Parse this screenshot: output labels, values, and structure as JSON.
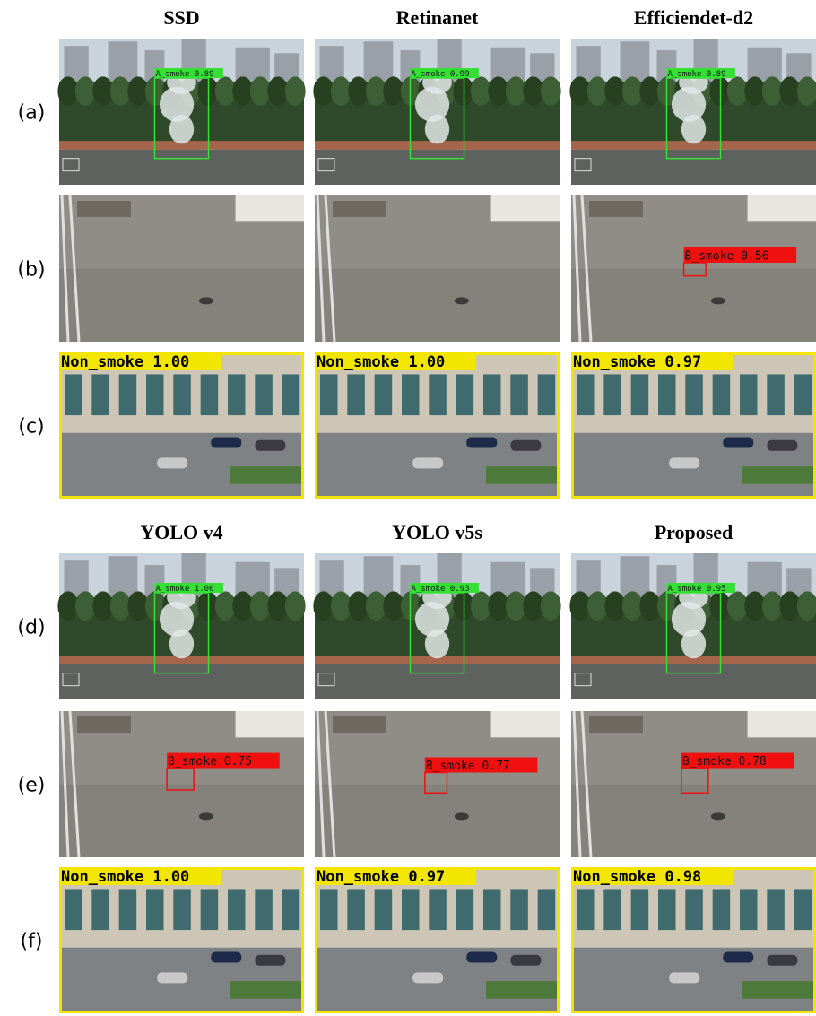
{
  "groups": [
    {
      "titles": [
        "SSD",
        "Retinanet",
        "Efficiendet-d2"
      ],
      "rows": [
        {
          "label": "(a)",
          "detections": [
            [
              "A_smoke 0.89"
            ],
            [
              "A_smoke 0.99"
            ],
            [
              "A_smoke 0.89"
            ]
          ]
        },
        {
          "label": "(b)",
          "detections": [
            [],
            [],
            [
              "B_smoke 0.56"
            ]
          ]
        },
        {
          "label": "(c)",
          "detections": [
            [
              "Non_smoke 1.00"
            ],
            [
              "Non_smoke 1.00"
            ],
            [
              "Non_smoke 0.97"
            ]
          ]
        }
      ]
    },
    {
      "titles": [
        "YOLO v4",
        "YOLO v5s",
        "Proposed"
      ],
      "rows": [
        {
          "label": "(d)",
          "detections": [
            [
              "A_smoke 1.00"
            ],
            [
              "A_smoke 0.93"
            ],
            [
              "A_smoke 0.95"
            ]
          ]
        },
        {
          "label": "(e)",
          "detections": [
            [
              "B_smoke 0.75"
            ],
            [
              "B_smoke 0.77"
            ],
            [
              "B_smoke 0.78"
            ]
          ]
        },
        {
          "label": "(f)",
          "detections": [
            [
              "Non_smoke 1.00"
            ],
            [
              "Non_smoke 0.97"
            ],
            [
              "Non_smoke 0.98"
            ]
          ]
        }
      ]
    }
  ]
}
